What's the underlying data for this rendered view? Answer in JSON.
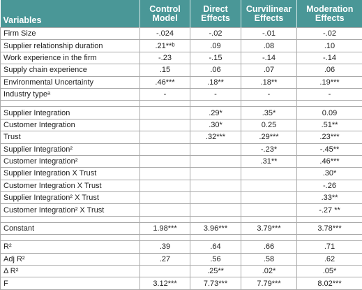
{
  "table": {
    "header": [
      "Variables",
      "Control Model",
      "Direct Effects",
      "Curvilinear Effects",
      "Moderation Effects"
    ],
    "sections": [
      {
        "rows": [
          {
            "label": "Firm Size",
            "cells": [
              "-.024",
              "-.02",
              "-.01",
              "-.02"
            ]
          },
          {
            "label": "Supplier relationship duration",
            "cells": [
              ".21**ᵇ",
              ".09",
              ".08",
              ".10"
            ]
          },
          {
            "label": "Work experience in the firm",
            "cells": [
              "-.23",
              "-.15",
              "-.14",
              "-.14"
            ]
          },
          {
            "label": "Supply chain experience",
            "cells": [
              ".15",
              ".06",
              ".07",
              ".06"
            ]
          },
          {
            "label": "Environmental Uncertainty",
            "cells": [
              ".46***",
              ".18**",
              ".18**",
              ".19***"
            ]
          },
          {
            "label": "Industry typeᵃ",
            "cells": [
              "-",
              "-",
              "-",
              "-"
            ]
          }
        ]
      },
      {
        "rows": [
          {
            "label": "Supplier Integration",
            "cells": [
              null,
              ".29*",
              ".35*",
              "0.09"
            ]
          },
          {
            "label": "Customer Integration",
            "cells": [
              null,
              ".30*",
              "0.25",
              ".51**"
            ]
          },
          {
            "label": "Trust",
            "cells": [
              null,
              ".32***",
              ".29***",
              ".23***"
            ]
          },
          {
            "label": "Supplier Integration²",
            "cells": [
              null,
              null,
              "-.23*",
              "-.45**"
            ]
          },
          {
            "label": "Customer Integration²",
            "cells": [
              null,
              null,
              ".31**",
              ".46***"
            ]
          },
          {
            "label": "Supplier Integration X Trust",
            "cells": [
              null,
              null,
              null,
              ".30*"
            ]
          },
          {
            "label": "Customer Integration X Trust",
            "cells": [
              null,
              null,
              null,
              "-.26"
            ]
          },
          {
            "label": "Supplier Integration² X Trust",
            "cells": [
              null,
              null,
              null,
              ".33**"
            ]
          },
          {
            "label": "Customer Integration² X Trust",
            "cells": [
              null,
              null,
              null,
              "-.27 **"
            ]
          }
        ]
      },
      {
        "rows": [
          {
            "label": "Constant",
            "cells": [
              "1.98***",
              "3.96***",
              "3.79***",
              "3.78***"
            ]
          }
        ]
      },
      {
        "rows": [
          {
            "label": "R²",
            "cells": [
              ".39",
              ".64",
              ".66",
              ".71"
            ]
          },
          {
            "label": "Adj R²",
            "cells": [
              ".27",
              ".56",
              ".58",
              ".62"
            ]
          },
          {
            "label": "Δ R²",
            "cells": [
              null,
              ".25**",
              ".02*",
              ".05*"
            ]
          },
          {
            "label": "F",
            "cells": [
              "3.12***",
              "7.73***",
              "7.79***",
              "8.02***"
            ]
          }
        ]
      }
    ]
  }
}
